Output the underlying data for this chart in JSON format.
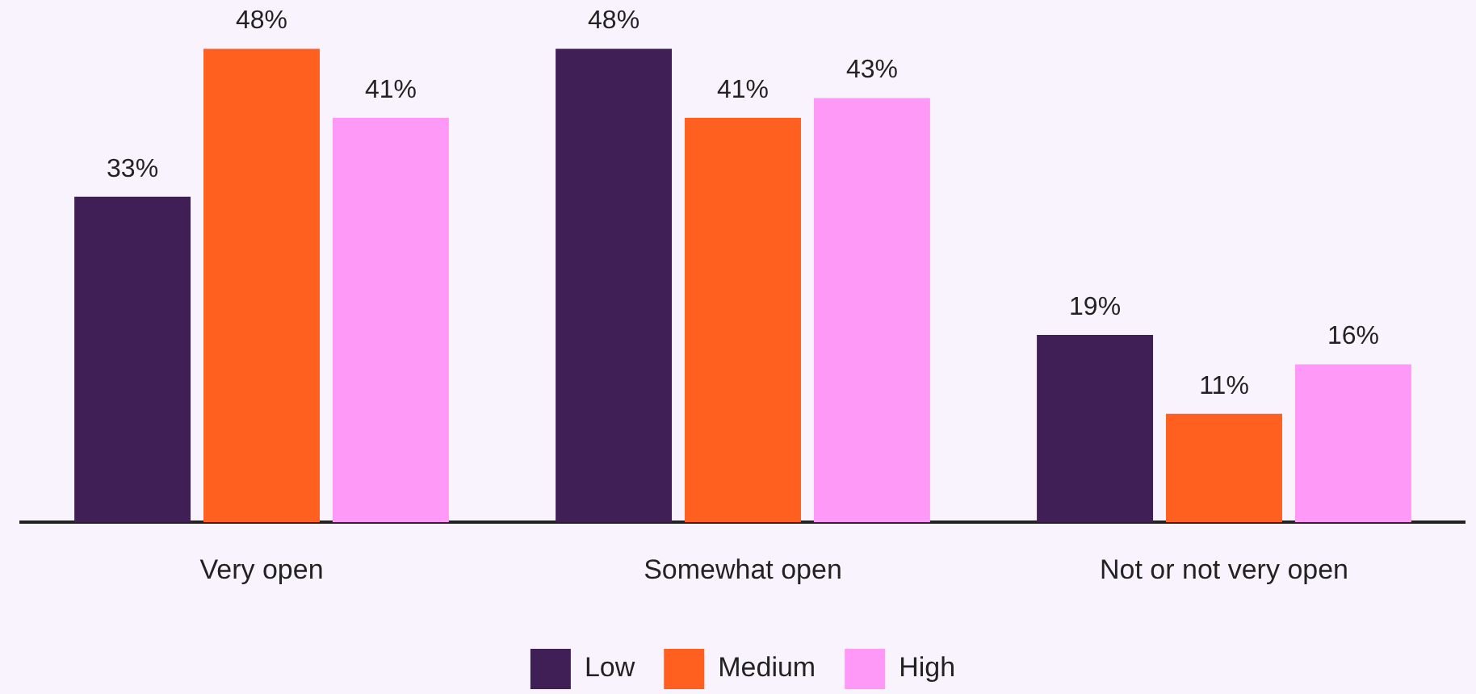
{
  "chart_data": {
    "type": "bar",
    "categories": [
      "Very open",
      "Somewhat open",
      "Not or not very open"
    ],
    "series": [
      {
        "name": "Low",
        "color": "#3f1f56",
        "values": [
          33,
          48,
          19
        ],
        "value_labels": [
          "33%",
          "48%",
          "19%"
        ]
      },
      {
        "name": "Medium",
        "color": "#ff5f1f",
        "values": [
          48,
          41,
          11
        ],
        "value_labels": [
          "48%",
          "41%",
          "11%"
        ]
      },
      {
        "name": "High",
        "color": "#ff99f8",
        "values": [
          41,
          43,
          16
        ],
        "value_labels": [
          "41%",
          "43%",
          "16%"
        ]
      }
    ],
    "legend": "bottom"
  }
}
